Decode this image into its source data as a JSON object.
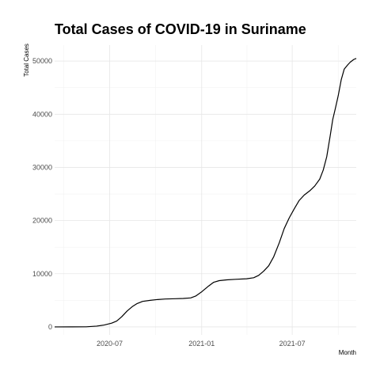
{
  "chart_data": {
    "type": "line",
    "title": "Total Cases of COVID-19 in Suriname",
    "xlabel": "Month",
    "ylabel": "Total Cases",
    "grid": true,
    "legend": "none",
    "xlim": [
      "2020-03-13",
      "2021-11-06"
    ],
    "ylim": [
      -1500,
      53000
    ],
    "x_ticks": [
      {
        "date": "2020-07-01",
        "label": "2020-07"
      },
      {
        "date": "2021-01-01",
        "label": "2021-01"
      },
      {
        "date": "2021-07-01",
        "label": "2021-07"
      }
    ],
    "y_ticks": [
      {
        "value": 0,
        "label": "0"
      },
      {
        "value": 10000,
        "label": "10000"
      },
      {
        "value": 20000,
        "label": "20000"
      },
      {
        "value": 30000,
        "label": "30000"
      },
      {
        "value": 40000,
        "label": "40000"
      },
      {
        "value": 50000,
        "label": "50000"
      }
    ],
    "series": [
      {
        "color": "#000000",
        "points": [
          [
            "2020-03-13",
            0
          ],
          [
            "2020-04-15",
            10
          ],
          [
            "2020-05-15",
            20
          ],
          [
            "2020-06-05",
            150
          ],
          [
            "2020-06-20",
            350
          ],
          [
            "2020-07-05",
            700
          ],
          [
            "2020-07-15",
            1100
          ],
          [
            "2020-07-25",
            1900
          ],
          [
            "2020-08-05",
            3000
          ],
          [
            "2020-08-15",
            3800
          ],
          [
            "2020-08-25",
            4400
          ],
          [
            "2020-09-05",
            4800
          ],
          [
            "2020-09-20",
            5000
          ],
          [
            "2020-10-05",
            5150
          ],
          [
            "2020-10-20",
            5250
          ],
          [
            "2020-11-10",
            5300
          ],
          [
            "2020-11-25",
            5350
          ],
          [
            "2020-12-10",
            5450
          ],
          [
            "2020-12-20",
            5800
          ],
          [
            "2021-01-01",
            6600
          ],
          [
            "2021-01-15",
            7700
          ],
          [
            "2021-01-25",
            8400
          ],
          [
            "2021-02-05",
            8700
          ],
          [
            "2021-02-20",
            8850
          ],
          [
            "2021-03-10",
            8950
          ],
          [
            "2021-04-01",
            9050
          ],
          [
            "2021-04-15",
            9250
          ],
          [
            "2021-04-25",
            9700
          ],
          [
            "2021-05-05",
            10500
          ],
          [
            "2021-05-15",
            11500
          ],
          [
            "2021-05-25",
            13200
          ],
          [
            "2021-06-05",
            15800
          ],
          [
            "2021-06-15",
            18500
          ],
          [
            "2021-06-25",
            20500
          ],
          [
            "2021-07-05",
            22200
          ],
          [
            "2021-07-15",
            23800
          ],
          [
            "2021-07-25",
            24800
          ],
          [
            "2021-08-05",
            25600
          ],
          [
            "2021-08-15",
            26500
          ],
          [
            "2021-08-25",
            27800
          ],
          [
            "2021-09-01",
            29500
          ],
          [
            "2021-09-08",
            32000
          ],
          [
            "2021-09-15",
            36000
          ],
          [
            "2021-09-20",
            39000
          ],
          [
            "2021-09-25",
            41000
          ],
          [
            "2021-10-01",
            43500
          ],
          [
            "2021-10-07",
            46500
          ],
          [
            "2021-10-13",
            48500
          ],
          [
            "2021-10-20",
            49300
          ],
          [
            "2021-10-25",
            49800
          ],
          [
            "2021-11-01",
            50300
          ],
          [
            "2021-11-06",
            50500
          ]
        ]
      }
    ]
  }
}
